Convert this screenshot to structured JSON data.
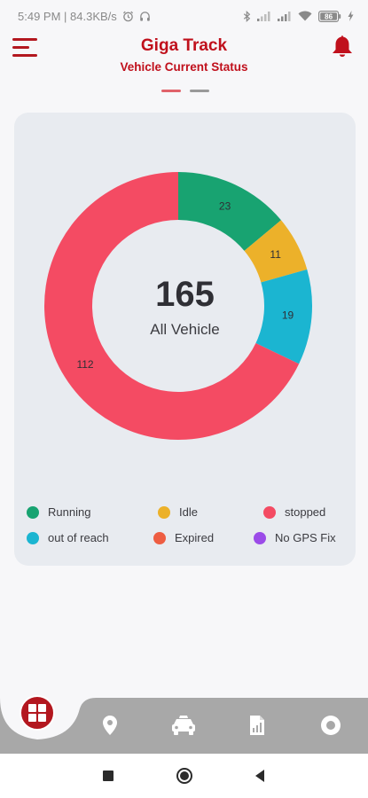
{
  "status_bar": {
    "time_speed": "5:49 PM | 84.3KB/s",
    "battery": "86"
  },
  "header": {
    "title": "Giga Track",
    "subtitle": "Vehicle Current Status",
    "menu_icon": "hamburger-menu-icon",
    "bell_icon": "bell-icon"
  },
  "pager": {
    "active": 0,
    "count": 2
  },
  "chart_data": {
    "type": "pie",
    "categories": [
      "Running",
      "Idle",
      "out of reach",
      "stopped",
      "Expired",
      "No GPS Fix"
    ],
    "values": [
      23,
      11,
      19,
      112,
      0,
      0
    ],
    "colors": [
      "#18a371",
      "#ecb12a",
      "#1bb5d1",
      "#f44b63",
      "#ee5d42",
      "#9b4be8"
    ],
    "center_value": "165",
    "center_label": "All Vehicle",
    "legend": [
      {
        "label": "Running",
        "color": "#18a371"
      },
      {
        "label": "Idle",
        "color": "#ecb12a"
      },
      {
        "label": "stopped",
        "color": "#f44b63"
      },
      {
        "label": "out of reach",
        "color": "#1bb5d1"
      },
      {
        "label": "Expired",
        "color": "#ee5d42"
      },
      {
        "label": "No GPS Fix",
        "color": "#9b4be8"
      }
    ]
  },
  "bottom_nav": {
    "items": [
      "dashboard-icon",
      "location-pin-icon",
      "car-icon",
      "report-icon",
      "circle-icon"
    ],
    "active": 0
  },
  "colors": {
    "brand": "#b3171f",
    "pager_active": "#e0626a",
    "pager_inactive": "#9a9a9a",
    "nav_bar": "#a8a8a8"
  }
}
